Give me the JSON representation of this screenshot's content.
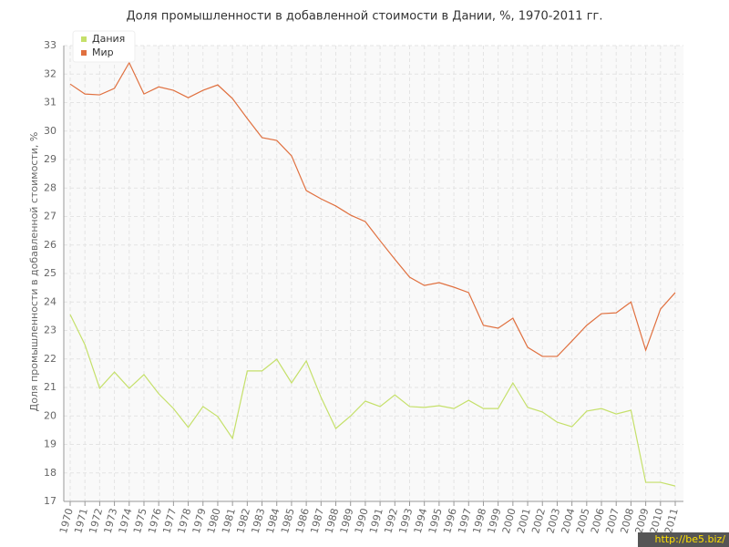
{
  "chart_data": {
    "type": "line",
    "title": "Доля промышленности в добавленной стоимости в Дании, %, 1970-2011 гг.",
    "y_label": "Доля промышленности в добавленной стоимости, %",
    "watermark": "http://be5.biz/",
    "categories": [
      "1970",
      "1971",
      "1972",
      "1973",
      "1974",
      "1975",
      "1976",
      "1977",
      "1978",
      "1979",
      "1980",
      "1981",
      "1982",
      "1983",
      "1984",
      "1985",
      "1986",
      "1987",
      "1988",
      "1989",
      "1990",
      "1991",
      "1992",
      "1993",
      "1994",
      "1995",
      "1996",
      "1997",
      "1998",
      "1999",
      "2000",
      "2001",
      "2002",
      "2003",
      "2004",
      "2005",
      "2006",
      "2007",
      "2008",
      "2009",
      "2010",
      "2011"
    ],
    "series": [
      {
        "name": "Дания",
        "color": "#c5e06a",
        "values": [
          23.56,
          22.5,
          20.97,
          21.54,
          20.97,
          21.45,
          20.78,
          20.26,
          19.6,
          20.33,
          19.98,
          19.21,
          21.58,
          21.58,
          21.99,
          21.16,
          21.93,
          20.65,
          19.56,
          20.0,
          20.52,
          20.33,
          20.74,
          20.33,
          20.3,
          20.36,
          20.26,
          20.55,
          20.26,
          20.26,
          21.16,
          20.3,
          20.14,
          19.78,
          19.62,
          20.17,
          20.26,
          20.07,
          20.2,
          17.67,
          17.67,
          17.54
        ]
      },
      {
        "name": "Мир",
        "color": "#e0703f",
        "values": [
          31.65,
          31.3,
          31.27,
          31.5,
          32.4,
          31.3,
          31.55,
          31.43,
          31.17,
          31.43,
          31.62,
          31.14,
          30.44,
          29.77,
          29.67,
          29.13,
          27.91,
          27.62,
          27.37,
          27.05,
          26.82,
          26.15,
          25.5,
          24.87,
          24.58,
          24.68,
          24.52,
          24.33,
          23.18,
          23.08,
          23.43,
          22.41,
          22.09,
          22.09,
          22.63,
          23.18,
          23.59,
          23.62,
          24.0,
          22.31,
          23.75,
          24.33
        ]
      }
    ],
    "ylim": [
      17,
      33
    ],
    "yticks": [
      17,
      18,
      19,
      20,
      21,
      22,
      23,
      24,
      25,
      26,
      27,
      28,
      29,
      30,
      31,
      32,
      33
    ],
    "grid": true,
    "legend": "top-left"
  }
}
